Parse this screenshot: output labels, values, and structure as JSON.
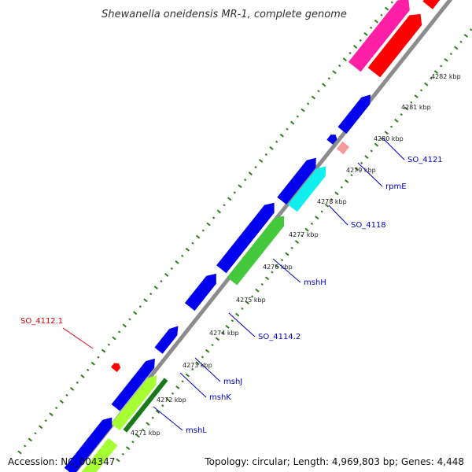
{
  "title": "Shewanella oneidensis MR-1, complete genome",
  "accession": "Accession: NC_004347",
  "topology": "Topology: circular; Length: 4,969,803 bp; Genes: 4,448",
  "colors": {
    "backbone": "#8c8c8c",
    "tick": "#2e7d1a",
    "blue": "#0000ee",
    "pink": "#ff1fa6",
    "red": "#ff0000",
    "cyan": "#11eeee",
    "green": "#44c83c",
    "lightgreen": "#a6ff33",
    "darkgreen": "#1a7a1a",
    "salmon": "#f49999",
    "label_blue": "#0000cc",
    "label_red": "#dd0000"
  },
  "kbp_labels": [
    "4282 kbp",
    "4281 kbp",
    "4280 kbp",
    "4279 kbp",
    "4278 kbp",
    "4277 kbp",
    "4276 kbp",
    "4275 kbp",
    "4274 kbp",
    "4273 kbp",
    "4272 kbp",
    "4271 kbp"
  ],
  "gene_labels": [
    {
      "text": "SO_4121",
      "color": "blue"
    },
    {
      "text": "rpmE",
      "color": "blue"
    },
    {
      "text": "SO_4118",
      "color": "blue"
    },
    {
      "text": "mshH",
      "color": "blue"
    },
    {
      "text": "SO_4114.2",
      "color": "blue"
    },
    {
      "text": "mshJ",
      "color": "blue"
    },
    {
      "text": "mshK",
      "color": "blue"
    },
    {
      "text": "mshL",
      "color": "blue"
    },
    {
      "text": "SO_4112.1",
      "color": "red"
    }
  ]
}
